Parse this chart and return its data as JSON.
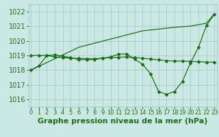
{
  "title": "Graphe pression niveau de la mer (hPa)",
  "hours": [
    0,
    1,
    2,
    3,
    4,
    5,
    6,
    7,
    8,
    9,
    10,
    11,
    12,
    13,
    14,
    15,
    16,
    17,
    18,
    19,
    20,
    21,
    22,
    23
  ],
  "line_upper": [
    1018.0,
    1018.26,
    1018.52,
    1018.78,
    1019.04,
    1019.3,
    1019.56,
    1019.7,
    1019.84,
    1019.98,
    1020.12,
    1020.26,
    1020.4,
    1020.54,
    1020.68,
    1020.74,
    1020.8,
    1020.86,
    1020.92,
    1020.96,
    1021.0,
    1021.1,
    1021.2,
    1021.85
  ],
  "line_mid": [
    1019.0,
    1019.0,
    1019.0,
    1018.9,
    1018.85,
    1018.82,
    1018.8,
    1018.78,
    1018.78,
    1018.82,
    1018.85,
    1018.88,
    1018.9,
    1018.85,
    1018.82,
    1018.75,
    1018.7,
    1018.65,
    1018.62,
    1018.62,
    1018.6,
    1018.58,
    1018.55,
    1018.55
  ],
  "line_low": [
    1018.0,
    1018.3,
    1019.0,
    1019.05,
    1018.95,
    1018.85,
    1018.72,
    1018.72,
    1018.72,
    1018.82,
    1018.9,
    1019.1,
    1019.1,
    1018.75,
    1018.4,
    1017.75,
    1016.55,
    1016.35,
    1016.55,
    1017.25,
    1018.5,
    1019.55,
    1021.05,
    1021.8
  ],
  "line_color": "#1a6e1a",
  "bg_color": "#cce8e4",
  "grid_color": "#a8ccc8",
  "text_color": "#1a6e1a",
  "ylim": [
    1015.5,
    1022.5
  ],
  "yticks": [
    1016,
    1017,
    1018,
    1019,
    1020,
    1021,
    1022
  ],
  "tick_fontsize": 7,
  "label_fontsize": 8
}
